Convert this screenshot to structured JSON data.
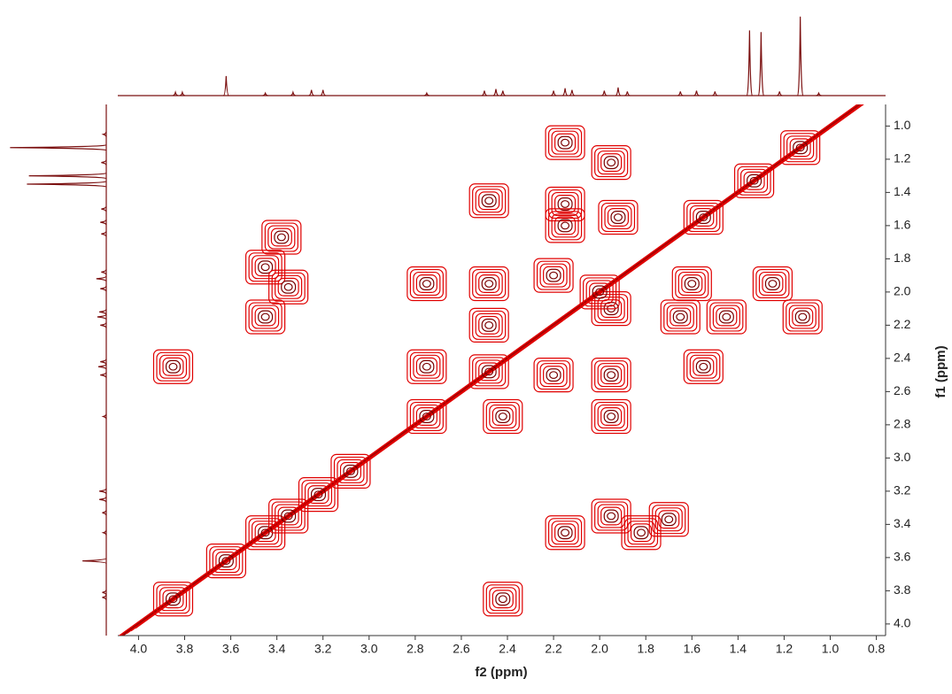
{
  "chart_data": {
    "type": "contour",
    "x_label": "f2 (ppm)",
    "y_label": "f1 (ppm)",
    "xlim": [
      4.09,
      0.76
    ],
    "ylim": [
      0.87,
      4.07
    ],
    "xticks": [
      {
        "value": 4.0,
        "label": "4.0"
      },
      3.8,
      3.6,
      3.4,
      3.2,
      {
        "value": 3.0,
        "label": "3.0"
      },
      2.8,
      2.6,
      2.4,
      2.2,
      {
        "value": 2.0,
        "label": "2.0"
      },
      1.8,
      1.6,
      1.4,
      1.2,
      {
        "value": 1.0,
        "label": "1.0"
      },
      0.8
    ],
    "yticks": [
      {
        "value": 1.0,
        "label": "1.0"
      },
      1.2,
      1.4,
      1.6,
      1.8,
      {
        "value": 2.0,
        "label": "2.0"
      },
      2.2,
      2.4,
      2.6,
      2.8,
      {
        "value": 3.0,
        "label": "3.0"
      },
      3.2,
      3.4,
      3.6,
      3.8,
      {
        "value": 4.0,
        "label": "4.0"
      }
    ],
    "color": "#e00000",
    "peaks": {
      "x": [
        2.15,
        1.95,
        2.48,
        2.15,
        2.15,
        1.92,
        3.38,
        3.45,
        3.35,
        2.75,
        2.48,
        2.2,
        1.6,
        1.25,
        1.12,
        1.45,
        1.65,
        1.95,
        2.48,
        3.45,
        3.85,
        2.75,
        2.2,
        1.95,
        1.55,
        2.42,
        1.95,
        1.95,
        1.7,
        1.82,
        2.15,
        2.42,
        3.85,
        3.62,
        3.45,
        3.35,
        3.22,
        3.08,
        2.75,
        2.48,
        2.0,
        1.55,
        1.33,
        1.13
      ],
      "y": [
        1.1,
        1.22,
        1.45,
        1.47,
        1.6,
        1.55,
        1.67,
        1.85,
        1.97,
        1.95,
        1.95,
        1.9,
        1.95,
        1.95,
        2.15,
        2.15,
        2.15,
        2.1,
        2.2,
        2.15,
        2.45,
        2.45,
        2.5,
        2.5,
        2.45,
        2.75,
        2.75,
        3.35,
        3.37,
        3.45,
        3.45,
        3.85,
        3.85,
        3.62,
        3.45,
        3.35,
        3.22,
        3.08,
        2.75,
        2.48,
        2.0,
        1.55,
        1.33,
        1.13
      ]
    },
    "projection": {
      "color": "#7b1010",
      "positions": [
        3.84,
        3.81,
        3.62,
        3.45,
        3.33,
        3.25,
        3.2,
        2.75,
        2.5,
        2.45,
        2.42,
        2.2,
        2.15,
        2.12,
        1.98,
        1.92,
        1.88,
        1.65,
        1.58,
        1.5,
        1.35,
        1.3,
        1.22,
        1.13,
        1.05
      ],
      "intensities": [
        4,
        4,
        24,
        3,
        4,
        7,
        7,
        3,
        6,
        8,
        6,
        6,
        9,
        7,
        6,
        10,
        5,
        5,
        6,
        5,
        80,
        78,
        5,
        97,
        3
      ]
    }
  }
}
